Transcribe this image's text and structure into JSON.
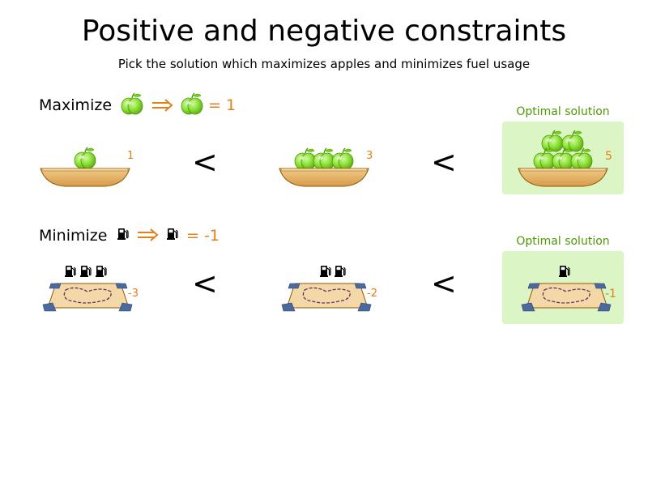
{
  "title": "Positive and negative constraints",
  "subtitle": "Pick the solution which maximizes apples and minimizes fuel usage",
  "maximize": {
    "label": "Maximize",
    "formula": "= 1",
    "optimal_label": "Optimal solution",
    "solutions": [
      {
        "apples": 1,
        "score": "1"
      },
      {
        "apples": 3,
        "score": "3"
      },
      {
        "apples": 5,
        "score": "5"
      }
    ]
  },
  "minimize": {
    "label": "Minimize",
    "formula": "= -1",
    "optimal_label": "Optimal solution",
    "solutions": [
      {
        "fuel_pumps": 3,
        "score": "-3"
      },
      {
        "fuel_pumps": 2,
        "score": "-2"
      },
      {
        "fuel_pumps": 1,
        "score": "-1"
      }
    ]
  },
  "comparison_symbol": "<",
  "colors": {
    "accent": "#e57f19",
    "optimal_text": "#4e9a06",
    "optimal_bg": "#dcf5c4",
    "apple": "#8ae234",
    "apple_dark": "#4e9a06",
    "bowl": "#e9b96e",
    "bowl_dark": "#8f5902",
    "map": "#f5d8a8",
    "map_corner": "#4a6a9e"
  },
  "icons": [
    "apple-icon",
    "implies-arrow-icon",
    "fuel-pump-icon",
    "fruit-bowl-icon",
    "road-map-icon"
  ]
}
